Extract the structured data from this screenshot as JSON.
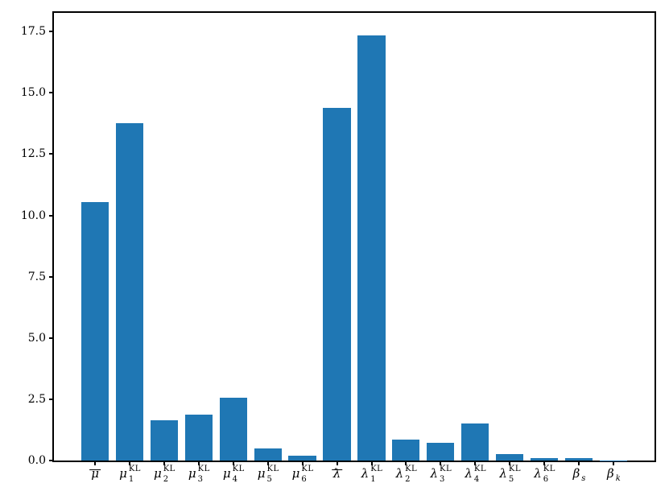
{
  "figure": {
    "background": "#ffffff",
    "axis_color": "#000000",
    "text_color": "#000000"
  },
  "chart_data": {
    "type": "bar",
    "title": "",
    "xlabel": "",
    "ylabel": "",
    "bar_color": "#1f77b4",
    "grid": false,
    "legend": null,
    "ylim": [
      0,
      18.26
    ],
    "yticks": [
      0.0,
      2.5,
      5.0,
      7.5,
      10.0,
      12.5,
      15.0,
      17.5
    ],
    "ytick_labels": [
      "0.0",
      "2.5",
      "5.0",
      "7.5",
      "10.0",
      "12.5",
      "15.0",
      "17.5"
    ],
    "bar_width_fraction": 0.8,
    "x_margin_fraction": 0.05,
    "categories": [
      {
        "plain": "mu_bar",
        "base": "μ",
        "overline": true,
        "sub": "",
        "sup": "",
        "sub_italic": false
      },
      {
        "plain": "mu_1^KL",
        "base": "μ",
        "overline": false,
        "sub": "1",
        "sup": "KL",
        "sub_italic": false
      },
      {
        "plain": "mu_2^KL",
        "base": "μ",
        "overline": false,
        "sub": "2",
        "sup": "KL",
        "sub_italic": false
      },
      {
        "plain": "mu_3^KL",
        "base": "μ",
        "overline": false,
        "sub": "3",
        "sup": "KL",
        "sub_italic": false
      },
      {
        "plain": "mu_4^KL",
        "base": "μ",
        "overline": false,
        "sub": "4",
        "sup": "KL",
        "sub_italic": false
      },
      {
        "plain": "mu_5^KL",
        "base": "μ",
        "overline": false,
        "sub": "5",
        "sup": "KL",
        "sub_italic": false
      },
      {
        "plain": "mu_6^KL",
        "base": "μ",
        "overline": false,
        "sub": "6",
        "sup": "KL",
        "sub_italic": false
      },
      {
        "plain": "lambda_bar",
        "base": "λ",
        "overline": true,
        "sub": "",
        "sup": "",
        "sub_italic": false
      },
      {
        "plain": "lambda_1^KL",
        "base": "λ",
        "overline": false,
        "sub": "1",
        "sup": "KL",
        "sub_italic": false
      },
      {
        "plain": "lambda_2^KL",
        "base": "λ",
        "overline": false,
        "sub": "2",
        "sup": "KL",
        "sub_italic": false
      },
      {
        "plain": "lambda_3^KL",
        "base": "λ",
        "overline": false,
        "sub": "3",
        "sup": "KL",
        "sub_italic": false
      },
      {
        "plain": "lambda_4^KL",
        "base": "λ",
        "overline": false,
        "sub": "4",
        "sup": "KL",
        "sub_italic": false
      },
      {
        "plain": "lambda_5^KL",
        "base": "λ",
        "overline": false,
        "sub": "5",
        "sup": "KL",
        "sub_italic": false
      },
      {
        "plain": "lambda_6^KL",
        "base": "λ",
        "overline": false,
        "sub": "6",
        "sup": "KL",
        "sub_italic": false
      },
      {
        "plain": "beta_s",
        "base": "β",
        "overline": false,
        "sub": "s",
        "sup": "",
        "sub_italic": true
      },
      {
        "plain": "beta_k",
        "base": "β",
        "overline": false,
        "sub": "k",
        "sup": "",
        "sub_italic": true
      }
    ],
    "values": [
      10.55,
      13.76,
      1.65,
      1.86,
      2.55,
      0.48,
      0.21,
      14.4,
      17.35,
      0.85,
      0.74,
      1.5,
      0.26,
      0.1,
      0.09,
      0.01
    ]
  }
}
